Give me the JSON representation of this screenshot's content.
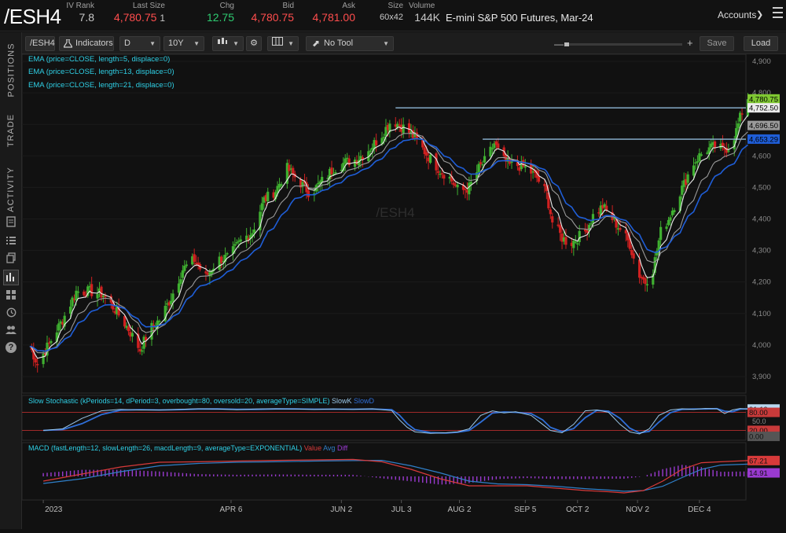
{
  "header": {
    "symbol": "/ESH4",
    "quote": [
      {
        "label": "IV Rank",
        "value": "7.8",
        "color": "gray"
      },
      {
        "label": "Last Size",
        "value": "4,780.75",
        "extra": "1",
        "color": "red"
      },
      {
        "label": "Chg",
        "value": "12.75",
        "color": "green"
      },
      {
        "label": "Bid",
        "value": "4,780.75",
        "color": "red"
      },
      {
        "label": "Ask",
        "value": "4,781.00",
        "color": "red"
      },
      {
        "label": "Size",
        "value": "60x42",
        "color": "gray"
      },
      {
        "label": "Volume",
        "value": "144K",
        "color": "gray"
      }
    ],
    "description": "E-mini S&P 500 Futures, Mar-24",
    "accounts_label": "Accounts"
  },
  "sidebar": {
    "tabs": [
      "POSITIONS",
      "TRADE",
      "ACTIVITY"
    ],
    "icons": [
      "document-icon",
      "list-icon",
      "copy-icon",
      "chart-icon",
      "grid-icon",
      "history-icon",
      "people-icon",
      "help-icon"
    ]
  },
  "toolbar": {
    "symbol": "/ESH4",
    "indicators_label": "Indicators",
    "interval": "D",
    "range": "10Y",
    "tool": "No Tool",
    "save_label": "Save",
    "load_label": "Load"
  },
  "chart_data": [
    {
      "type": "candlestick",
      "watermark": "/ESH4",
      "legend": [
        "EMA (price=CLOSE, length=5, displace=0)",
        "EMA (price=CLOSE, length=13, displace=0)",
        "EMA (price=CLOSE, length=21, displace=0)"
      ],
      "y_ticks": [
        "4,900",
        "4,800",
        "4,700",
        "4,600",
        "4,500",
        "4,400",
        "4,300",
        "4,200",
        "4,100",
        "4,000",
        "3,900"
      ],
      "ylim": [
        3850,
        4920
      ],
      "x_ticks": [
        {
          "label": "2023",
          "day": 0
        },
        {
          "label": "APR 6",
          "day": 97
        },
        {
          "label": "JUN 2",
          "day": 154
        },
        {
          "label": "JUL 3",
          "day": 185
        },
        {
          "label": "AUG 2",
          "day": 215
        },
        {
          "label": "SEP 5",
          "day": 249
        },
        {
          "label": "OCT 2",
          "day": 276
        },
        {
          "label": "NOV 2",
          "day": 307
        },
        {
          "label": "DEC 4",
          "day": 339
        }
      ],
      "x_range_days": [
        -11,
        363
      ],
      "price_labels": [
        {
          "value": "4,780.75",
          "price": 4780.75,
          "color": "#7fc832",
          "text_color": "#000000"
        },
        {
          "value": "4,752.50",
          "price": 4752.5,
          "color": "#eaeaea",
          "text_color": "#000000"
        },
        {
          "value": "4,696.50",
          "price": 4696.5,
          "color": "#9a9a9a",
          "text_color": "#000000"
        },
        {
          "value": "4,653.29",
          "price": 4653.29,
          "color": "#1f5ed8",
          "text_color": "#000000"
        }
      ],
      "levels": [
        {
          "price": 4752.5,
          "from_day": 182
        },
        {
          "price": 4653,
          "from_day": 227
        }
      ],
      "series": [
        {
          "name": "price",
          "points": [
            [
              -8,
              4010
            ],
            [
              -3,
              3940
            ],
            [
              10,
              4080
            ],
            [
              17,
              4170
            ],
            [
              24,
              4170
            ],
            [
              31,
              4160
            ],
            [
              38,
              4105
            ],
            [
              44,
              4050
            ],
            [
              50,
              3985
            ],
            [
              55,
              4050
            ],
            [
              60,
              4080
            ],
            [
              66,
              4150
            ],
            [
              72,
              4240
            ],
            [
              78,
              4270
            ],
            [
              84,
              4215
            ],
            [
              90,
              4270
            ],
            [
              96,
              4280
            ],
            [
              102,
              4330
            ],
            [
              108,
              4360
            ],
            [
              114,
              4460
            ],
            [
              120,
              4490
            ],
            [
              126,
              4560
            ],
            [
              132,
              4520
            ],
            [
              138,
              4480
            ],
            [
              144,
              4520
            ],
            [
              150,
              4560
            ],
            [
              156,
              4580
            ],
            [
              162,
              4590
            ],
            [
              168,
              4620
            ],
            [
              174,
              4660
            ],
            [
              180,
              4715
            ],
            [
              186,
              4690
            ],
            [
              190,
              4670
            ],
            [
              195,
              4630
            ],
            [
              200,
              4590
            ],
            [
              205,
              4555
            ],
            [
              210,
              4530
            ],
            [
              215,
              4485
            ],
            [
              220,
              4500
            ],
            [
              225,
              4560
            ],
            [
              229,
              4590
            ],
            [
              233,
              4640
            ],
            [
              237,
              4590
            ],
            [
              241,
              4570
            ],
            [
              245,
              4570
            ],
            [
              250,
              4560
            ],
            [
              255,
              4530
            ],
            [
              260,
              4480
            ],
            [
              263,
              4390
            ],
            [
              268,
              4340
            ],
            [
              272,
              4320
            ],
            [
              276,
              4340
            ],
            [
              280,
              4360
            ],
            [
              284,
              4410
            ],
            [
              289,
              4440
            ],
            [
              294,
              4400
            ],
            [
              299,
              4360
            ],
            [
              303,
              4320
            ],
            [
              307,
              4230
            ],
            [
              311,
              4200
            ],
            [
              315,
              4240
            ],
            [
              319,
              4360
            ],
            [
              323,
              4400
            ],
            [
              327,
              4460
            ],
            [
              331,
              4510
            ],
            [
              335,
              4570
            ],
            [
              339,
              4600
            ],
            [
              343,
              4620
            ],
            [
              347,
              4630
            ],
            [
              351,
              4620
            ],
            [
              355,
              4630
            ],
            [
              358,
              4680
            ],
            [
              361,
              4740
            ],
            [
              364,
              4780
            ]
          ]
        },
        {
          "name": "EMA 5",
          "color": "#eaeaea"
        },
        {
          "name": "EMA 13",
          "color": "#9a9a9a"
        },
        {
          "name": "EMA 21",
          "color": "#1f5ed8"
        }
      ]
    },
    {
      "type": "line",
      "legend": "Slow Stochastic (kPeriods=14, dPeriod=3, overbought=80, oversold=20, averageType=SIMPLE)",
      "series_names": [
        "SlowK",
        "SlowD"
      ],
      "series_colors": [
        "#9ac7e8",
        "#2f6fd8"
      ],
      "ylim": [
        -5,
        105
      ],
      "levels": [
        80,
        20
      ],
      "y_ticks": [
        "50.0"
      ],
      "value_labels": [
        {
          "value": "91.19",
          "y": 91.19,
          "color": "#b9d8f0"
        },
        {
          "value": "80.00",
          "y": 80,
          "color": "#c83a3a"
        },
        {
          "value": "20.00",
          "y": 20,
          "color": "#c83a3a"
        },
        {
          "value": "0.00",
          "y": 0,
          "color": "#555555"
        }
      ],
      "points": [
        [
          0,
          20
        ],
        [
          10,
          25
        ],
        [
          20,
          60
        ],
        [
          30,
          85
        ],
        [
          40,
          90
        ],
        [
          50,
          88
        ],
        [
          60,
          88
        ],
        [
          70,
          90
        ],
        [
          80,
          92
        ],
        [
          90,
          91
        ],
        [
          100,
          89
        ],
        [
          110,
          91
        ],
        [
          120,
          92
        ],
        [
          130,
          91
        ],
        [
          140,
          90
        ],
        [
          150,
          91
        ],
        [
          160,
          90
        ],
        [
          170,
          92
        ],
        [
          180,
          86
        ],
        [
          184,
          55
        ],
        [
          188,
          30
        ],
        [
          192,
          15
        ],
        [
          200,
          10
        ],
        [
          208,
          12
        ],
        [
          214,
          15
        ],
        [
          220,
          25
        ],
        [
          226,
          70
        ],
        [
          232,
          85
        ],
        [
          238,
          78
        ],
        [
          244,
          82
        ],
        [
          252,
          70
        ],
        [
          258,
          40
        ],
        [
          262,
          20
        ],
        [
          268,
          12
        ],
        [
          274,
          40
        ],
        [
          280,
          85
        ],
        [
          286,
          88
        ],
        [
          292,
          80
        ],
        [
          298,
          40
        ],
        [
          303,
          15
        ],
        [
          308,
          8
        ],
        [
          313,
          25
        ],
        [
          318,
          70
        ],
        [
          324,
          88
        ],
        [
          330,
          92
        ],
        [
          336,
          90
        ],
        [
          342,
          93
        ],
        [
          348,
          92
        ],
        [
          352,
          76
        ],
        [
          356,
          88
        ],
        [
          360,
          93
        ],
        [
          364,
          91
        ]
      ]
    },
    {
      "type": "line",
      "legend": "MACD (fastLength=12, slowLength=26, macdLength=9, averageType=EXPONENTIAL)",
      "series_names": [
        "Value",
        "Avg",
        "Diff"
      ],
      "series_colors": [
        "#d83a3a",
        "#2f7fc8",
        "#9a3ad0"
      ],
      "ylim": [
        -90,
        90
      ],
      "value_labels": [
        {
          "value": "67.21",
          "y": 67.21,
          "color": "#d83a3a"
        },
        {
          "value": "14.91",
          "y": 14.91,
          "color": "#9a3ad0"
        }
      ],
      "value": [
        [
          0,
          -20
        ],
        [
          20,
          10
        ],
        [
          40,
          40
        ],
        [
          60,
          60
        ],
        [
          80,
          62
        ],
        [
          100,
          65
        ],
        [
          120,
          68
        ],
        [
          140,
          70
        ],
        [
          160,
          72
        ],
        [
          175,
          62
        ],
        [
          190,
          30
        ],
        [
          205,
          -10
        ],
        [
          220,
          -40
        ],
        [
          235,
          -40
        ],
        [
          250,
          -40
        ],
        [
          265,
          -50
        ],
        [
          280,
          -60
        ],
        [
          292,
          -65
        ],
        [
          300,
          -70
        ],
        [
          310,
          -60
        ],
        [
          320,
          -20
        ],
        [
          330,
          30
        ],
        [
          340,
          58
        ],
        [
          350,
          62
        ],
        [
          364,
          67
        ]
      ],
      "avg": [
        [
          0,
          -30
        ],
        [
          20,
          -10
        ],
        [
          40,
          20
        ],
        [
          60,
          45
        ],
        [
          80,
          55
        ],
        [
          100,
          60
        ],
        [
          120,
          62
        ],
        [
          140,
          65
        ],
        [
          160,
          67
        ],
        [
          175,
          68
        ],
        [
          190,
          45
        ],
        [
          205,
          15
        ],
        [
          220,
          -20
        ],
        [
          235,
          -32
        ],
        [
          250,
          -35
        ],
        [
          265,
          -42
        ],
        [
          280,
          -52
        ],
        [
          292,
          -58
        ],
        [
          300,
          -63
        ],
        [
          310,
          -60
        ],
        [
          320,
          -42
        ],
        [
          330,
          -5
        ],
        [
          340,
          30
        ],
        [
          350,
          48
        ],
        [
          364,
          52
        ]
      ]
    }
  ]
}
